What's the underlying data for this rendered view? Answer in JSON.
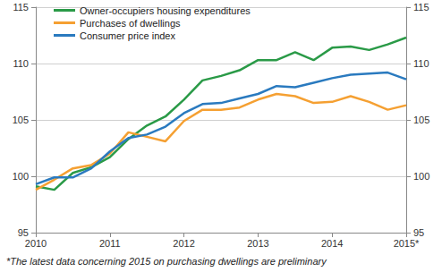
{
  "chart_data": {
    "type": "line",
    "annotation": "*The latest data concerning 2015 on purchasing dwellings are preliminary",
    "x": [
      2010,
      2010.25,
      2010.5,
      2010.75,
      2011,
      2011.25,
      2011.5,
      2011.75,
      2012,
      2012.25,
      2012.5,
      2012.75,
      2013,
      2013.25,
      2013.5,
      2013.75,
      2014,
      2014.25,
      2014.5,
      2014.75,
      2015
    ],
    "series": [
      {
        "name": "Owner-occupiers housing expenditures",
        "color": "#2a9a47",
        "values": [
          99.1,
          98.8,
          100.3,
          100.8,
          101.7,
          103.3,
          104.5,
          105.3,
          106.8,
          108.5,
          108.9,
          109.4,
          110.3,
          110.3,
          111.0,
          110.3,
          111.4,
          111.5,
          111.2,
          111.7,
          112.3
        ]
      },
      {
        "name": "Purchases of dwellings",
        "color": "#f5a032",
        "values": [
          98.8,
          99.7,
          100.7,
          101.0,
          102.0,
          103.9,
          103.5,
          103.1,
          104.9,
          105.9,
          105.9,
          106.1,
          106.8,
          107.3,
          107.1,
          106.5,
          106.6,
          107.1,
          106.6,
          105.9,
          106.3
        ]
      },
      {
        "name": "Consumer price index",
        "color": "#2a7abf",
        "values": [
          99.3,
          99.9,
          99.9,
          100.7,
          102.2,
          103.4,
          103.7,
          104.4,
          105.6,
          106.4,
          106.5,
          106.9,
          107.3,
          108.0,
          107.9,
          108.3,
          108.7,
          109.0,
          109.1,
          109.2,
          108.6
        ]
      }
    ],
    "xlim": [
      2010,
      2015
    ],
    "xticks": [
      2010,
      2011,
      2012,
      2013,
      2014,
      {
        "value": 2015,
        "label": "2015*"
      }
    ],
    "ylim": [
      95,
      115
    ],
    "yticks": [
      95,
      100,
      105,
      110,
      115
    ],
    "y2lim": [
      95,
      115
    ],
    "y2ticks": [
      95,
      100,
      105,
      110,
      115
    ],
    "grid": true,
    "legend": "upper left"
  }
}
